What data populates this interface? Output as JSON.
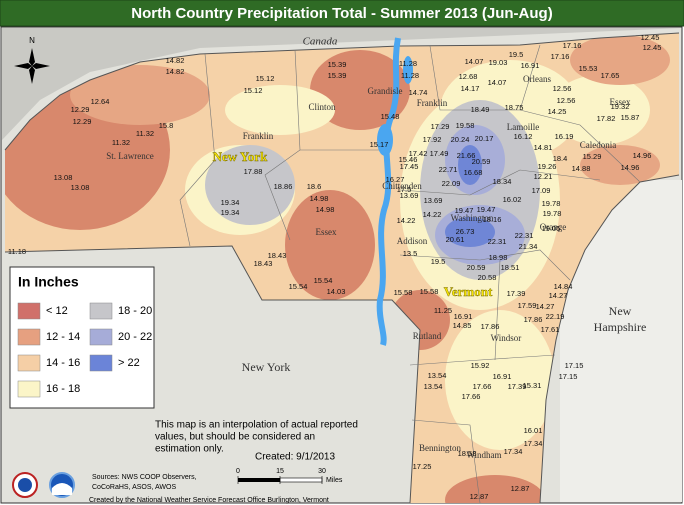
{
  "header": {
    "title": "North Country Precipitation Total - Summer 2013 (Jun-Aug)"
  },
  "compass": "N",
  "legend": {
    "title": "In Inches",
    "items": [
      {
        "label": "< 12",
        "color": "#d0706a"
      },
      {
        "label": "12 - 14",
        "color": "#e6a080"
      },
      {
        "label": "14 - 16",
        "color": "#f5cfa6"
      },
      {
        "label": "16 - 18",
        "color": "#fbf5c8"
      },
      {
        "label": "18 - 20",
        "color": "#c6c6ca"
      },
      {
        "label": "20 - 22",
        "color": "#a6acd8"
      },
      {
        "label": "> 22",
        "color": "#6b84d8"
      }
    ]
  },
  "places": [
    "Canada",
    "New York",
    "Vermont",
    "New York",
    "New",
    "Hampshire",
    "St. Lawrence",
    "Franklin",
    "Clinton",
    "Essex",
    "Grandisle",
    "Franklin",
    "Orleans",
    "Lamoille",
    "Essex",
    "Caledonia",
    "Chittenden",
    "Washington",
    "Orange",
    "Addison",
    "Rutland",
    "Windsor",
    "Bennington",
    "Windham"
  ],
  "stations": [
    12.45,
    12.45,
    17.16,
    17.16,
    19.5,
    16.91,
    19.03,
    14.07,
    12.68,
    14.17,
    14.07,
    11.28,
    11.28,
    14.74,
    15.39,
    15.39,
    15.12,
    15.12,
    14.82,
    14.82,
    12.64,
    12.29,
    12.29,
    15.8,
    11.32,
    11.32,
    13.08,
    13.08,
    17.65,
    15.53,
    12.56,
    12.56,
    19.32,
    17.82,
    15.87,
    14.25,
    18.75,
    18.49,
    19.58,
    20.17,
    17.29,
    16.12,
    14.81,
    16.19,
    18.4,
    19.26,
    15.29,
    14.96,
    14.96,
    14.88,
    12.21,
    17.92,
    20.24,
    17.49,
    17.42,
    21.66,
    20.59,
    17.45,
    15.46,
    15.48,
    15.17,
    16.27,
    17.5,
    22.71,
    22.09,
    16.68,
    18.34,
    13.69,
    13.69,
    17.09,
    16.02,
    19.78,
    19.78,
    19.05,
    18.16,
    19.47,
    19.47,
    26.73,
    20.61,
    22.31,
    22.31,
    21.34,
    14.22,
    14.22,
    13.5,
    19.5,
    20.59,
    20.58,
    18.51,
    18.98,
    15.58,
    15.58,
    14.84,
    14.27,
    17.39,
    17.59,
    14.27,
    17.86,
    22.19,
    17.61,
    17.86,
    16.91,
    14.85,
    11.25,
    15.92,
    16.91,
    17.15,
    17.15,
    15.31,
    17.66,
    17.66,
    13.54,
    13.54,
    17.39,
    16.01,
    17.34,
    17.34,
    17.25,
    18.58,
    12.87,
    12.87,
    17.88,
    18.86,
    19.34,
    19.34,
    18.6,
    14.98,
    14.98,
    18.43,
    18.43,
    15.54,
    15.54,
    14.03,
    11.18
  ],
  "note": [
    "This map is an interpolation of actual reported",
    "values, but should be considered an",
    "estimation only."
  ],
  "created": "Created: 9/1/2013",
  "scale": {
    "ticks": [
      0,
      15,
      30
    ],
    "unit": "Miles"
  },
  "sources": [
    "Sources: NWS COOP Observers,",
    "CoCoRaHS, ASOS, AWOS"
  ],
  "credit": "Created by the National Weather Service Forecast Office Burlington, Vermont"
}
